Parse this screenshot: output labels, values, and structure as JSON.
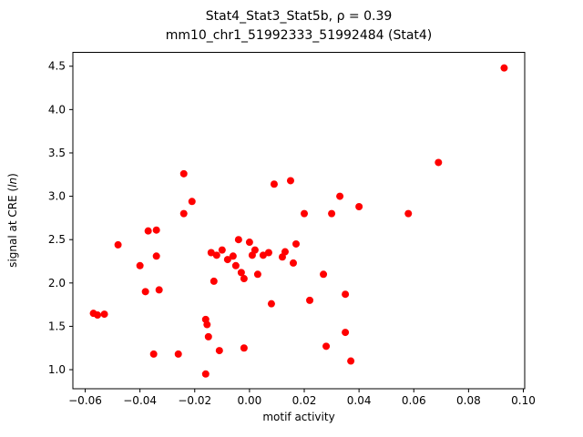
{
  "chart_data": {
    "type": "scatter",
    "title": "Stat4_Stat3_Stat5b, ρ = 0.39",
    "subtitle": "mm10_chr1_51992333_51992484 (Stat4)",
    "xlabel": "motif activity",
    "ylabel_prefix": "signal at CRE (",
    "ylabel_italic": "ln",
    "ylabel_suffix": ")",
    "marker_color": "#ff0000",
    "axis_color": "#000000",
    "grid": false,
    "legend": "none",
    "xlim": [
      -0.0645,
      0.1005
    ],
    "ylim": [
      0.78,
      4.66
    ],
    "xticks": [
      -0.06,
      -0.04,
      -0.02,
      0.0,
      0.02,
      0.04,
      0.06,
      0.08,
      0.1
    ],
    "xtick_labels": [
      "−0.06",
      "−0.04",
      "−0.02",
      "0.00",
      "0.02",
      "0.04",
      "0.06",
      "0.08",
      "0.10"
    ],
    "yticks": [
      1.0,
      1.5,
      2.0,
      2.5,
      3.0,
      3.5,
      4.0,
      4.5
    ],
    "ytick_labels": [
      "1.0",
      "1.5",
      "2.0",
      "2.5",
      "3.0",
      "3.5",
      "4.0",
      "4.5"
    ],
    "points": [
      [
        -0.057,
        1.65
      ],
      [
        -0.0555,
        1.63
      ],
      [
        -0.053,
        1.64
      ],
      [
        -0.048,
        2.44
      ],
      [
        -0.04,
        2.2
      ],
      [
        -0.037,
        2.6
      ],
      [
        -0.034,
        2.61
      ],
      [
        -0.038,
        1.9
      ],
      [
        -0.033,
        1.92
      ],
      [
        -0.034,
        2.31
      ],
      [
        -0.035,
        1.18
      ],
      [
        -0.026,
        1.18
      ],
      [
        -0.024,
        3.26
      ],
      [
        -0.024,
        2.8
      ],
      [
        -0.021,
        2.94
      ],
      [
        -0.016,
        0.95
      ],
      [
        -0.016,
        1.58
      ],
      [
        -0.0155,
        1.52
      ],
      [
        -0.015,
        1.38
      ],
      [
        -0.014,
        2.35
      ],
      [
        -0.012,
        2.32
      ],
      [
        -0.013,
        2.02
      ],
      [
        -0.011,
        1.22
      ],
      [
        -0.01,
        2.38
      ],
      [
        -0.008,
        2.27
      ],
      [
        -0.006,
        2.31
      ],
      [
        -0.005,
        2.2
      ],
      [
        -0.004,
        2.5
      ],
      [
        -0.003,
        2.12
      ],
      [
        -0.002,
        2.05
      ],
      [
        -0.002,
        1.25
      ],
      [
        0.0,
        2.47
      ],
      [
        0.001,
        2.32
      ],
      [
        0.002,
        2.38
      ],
      [
        0.003,
        2.1
      ],
      [
        0.005,
        2.32
      ],
      [
        0.007,
        2.35
      ],
      [
        0.008,
        1.76
      ],
      [
        0.009,
        3.14
      ],
      [
        0.012,
        2.3
      ],
      [
        0.013,
        2.36
      ],
      [
        0.015,
        3.18
      ],
      [
        0.016,
        2.23
      ],
      [
        0.017,
        2.45
      ],
      [
        0.02,
        2.8
      ],
      [
        0.022,
        1.8
      ],
      [
        0.027,
        2.1
      ],
      [
        0.028,
        1.27
      ],
      [
        0.03,
        2.8
      ],
      [
        0.033,
        3.0
      ],
      [
        0.035,
        1.87
      ],
      [
        0.035,
        1.43
      ],
      [
        0.037,
        1.1
      ],
      [
        0.04,
        2.88
      ],
      [
        0.058,
        2.8
      ],
      [
        0.069,
        3.39
      ],
      [
        0.093,
        4.48
      ]
    ]
  }
}
